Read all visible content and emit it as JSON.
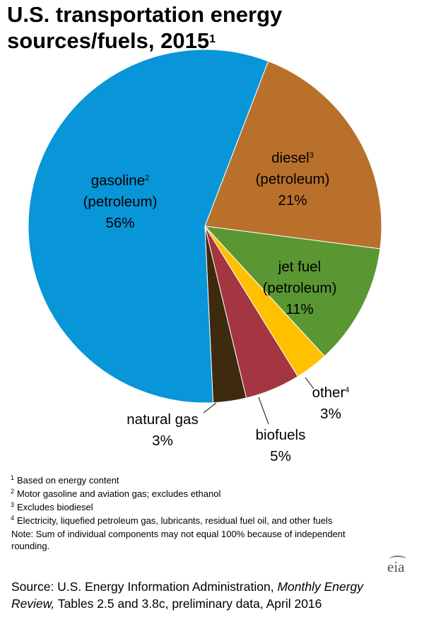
{
  "title": {
    "text": "U.S. transportation energy sources/fuels, 2015",
    "marker": "1"
  },
  "chart_data": {
    "type": "pie",
    "title": "U.S. transportation energy sources/fuels, 2015",
    "start_angle_deg": 21,
    "direction": "clockwise",
    "slices": [
      {
        "name": "diesel",
        "sup": "3",
        "sub": "(petroleum)",
        "value": 21,
        "label": "21%",
        "color": "#B8702B"
      },
      {
        "name": "jet fuel",
        "sup": "",
        "sub": "(petroleum)",
        "value": 11,
        "label": "11%",
        "color": "#5A9632"
      },
      {
        "name": "other",
        "sup": "4",
        "sub": "",
        "value": 3,
        "label": "3%",
        "color": "#FFC000"
      },
      {
        "name": "biofuels",
        "sup": "",
        "sub": "",
        "value": 5,
        "label": "5%",
        "color": "#A33640"
      },
      {
        "name": "natural gas",
        "sup": "",
        "sub": "",
        "value": 3,
        "label": "3%",
        "color": "#3E2A0E"
      },
      {
        "name": "gasoline",
        "sup": "2",
        "sub": "(petroleum)",
        "value": 56,
        "label": "56%",
        "color": "#0896D8"
      }
    ]
  },
  "footnotes": [
    {
      "marker": "1",
      "text": "Based on energy content"
    },
    {
      "marker": "2",
      "text": "Motor gasoline and aviation gas; excludes ethanol"
    },
    {
      "marker": "3",
      "text": "Excludes biodiesel"
    },
    {
      "marker": "4",
      "text": "Electricity, liquefied petroleum gas, lubricants, residual fuel oil, and other fuels"
    }
  ],
  "note": "Note: Sum of individual components may not equal 100% because of independent rounding.",
  "source": {
    "prefix": "Source: U.S. Energy Information Administration,",
    "italic": "Monthly Energy Review,",
    "suffix": "Tables 2.5 and 3.8c, preliminary data, April 2016"
  },
  "logo": "eia"
}
